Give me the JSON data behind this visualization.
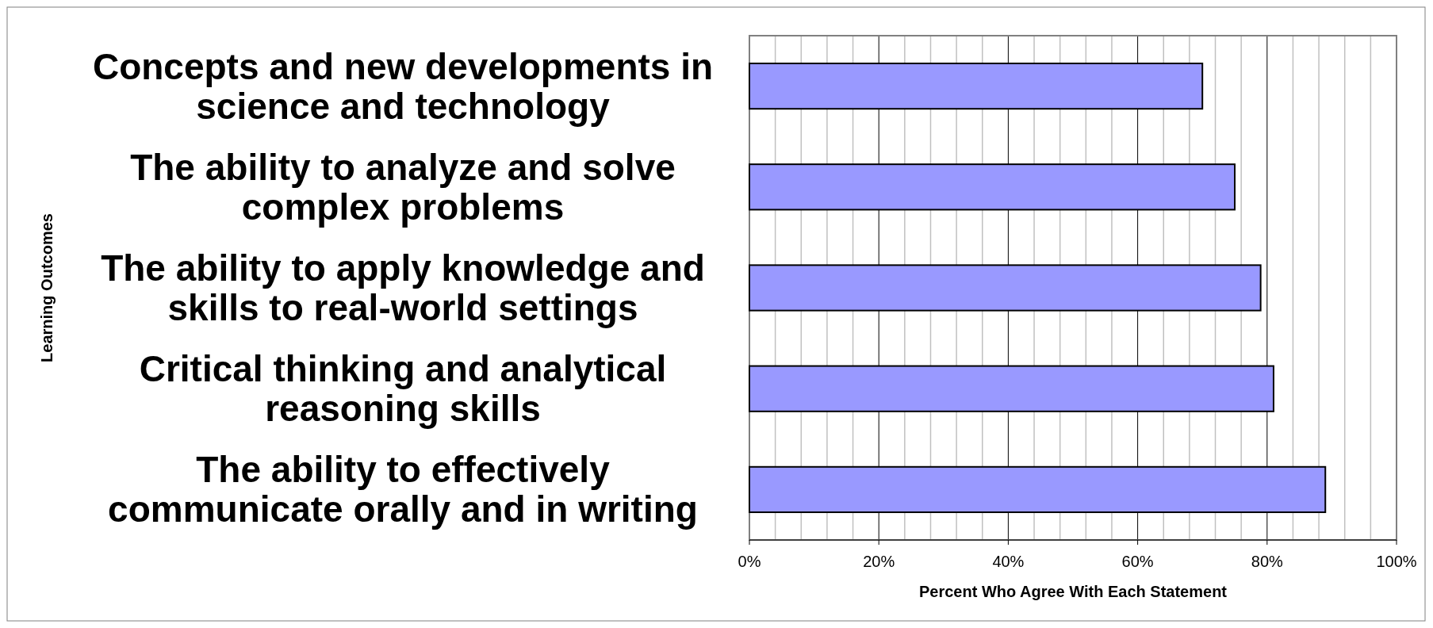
{
  "chart_data": {
    "type": "bar",
    "orientation": "horizontal",
    "xlabel": "Percent Who Agree With Each Statement",
    "ylabel": "Learning Outcomes",
    "categories": [
      "Concepts and new developments in science and technology",
      "The ability to analyze and solve complex problems",
      "The ability to apply knowledge and skills to real-world settings",
      "Critical thinking and analytical reasoning skills",
      "The ability to effectively communicate orally and in writing"
    ],
    "values": [
      70,
      75,
      79,
      81,
      89
    ],
    "color": "#9999ff",
    "xlim": [
      0,
      100
    ],
    "xticks": [
      {
        "value": 0,
        "label": "0%"
      },
      {
        "value": 4,
        "label": null
      },
      {
        "value": 8,
        "label": null
      },
      {
        "value": 12,
        "label": null
      },
      {
        "value": 16,
        "label": null
      },
      {
        "value": 20,
        "label": "20%"
      },
      {
        "value": 24,
        "label": null
      },
      {
        "value": 28,
        "label": null
      },
      {
        "value": 32,
        "label": null
      },
      {
        "value": 36,
        "label": null
      },
      {
        "value": 40,
        "label": "40%"
      },
      {
        "value": 44,
        "label": null
      },
      {
        "value": 48,
        "label": null
      },
      {
        "value": 52,
        "label": null
      },
      {
        "value": 56,
        "label": null
      },
      {
        "value": 60,
        "label": "60%"
      },
      {
        "value": 64,
        "label": null
      },
      {
        "value": 68,
        "label": null
      },
      {
        "value": 72,
        "label": null
      },
      {
        "value": 76,
        "label": null
      },
      {
        "value": 80,
        "label": "80%"
      },
      {
        "value": 84,
        "label": null
      },
      {
        "value": 88,
        "label": null
      },
      {
        "value": 92,
        "label": null
      },
      {
        "value": 96,
        "label": null
      },
      {
        "value": 100,
        "label": "100%"
      }
    ],
    "grid": "x"
  }
}
